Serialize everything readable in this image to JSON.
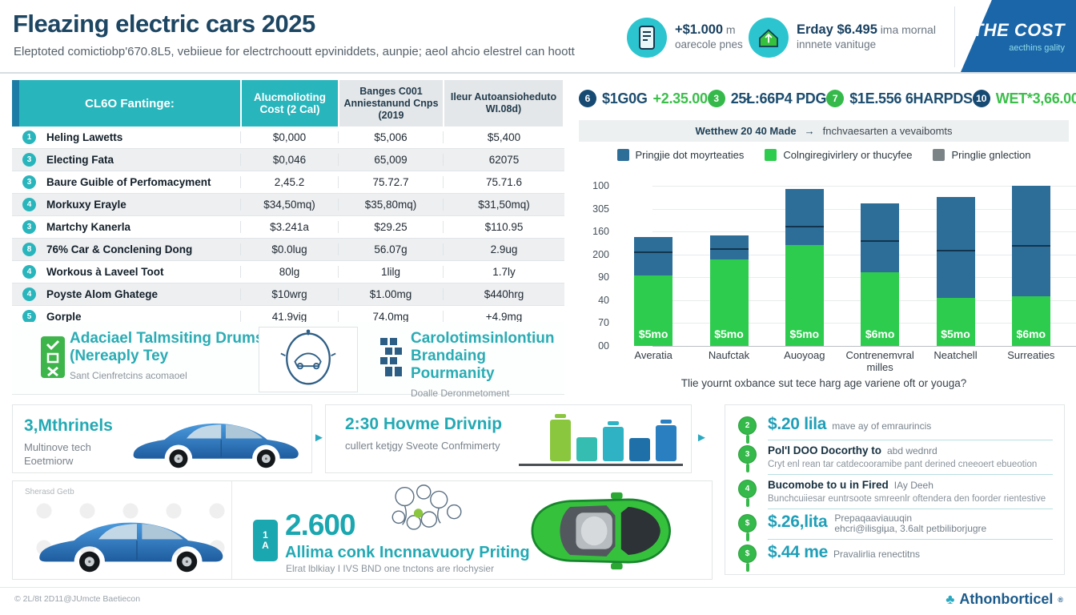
{
  "colors": {
    "teal": "#29b5bc",
    "navy": "#1c4d70",
    "ribbon_blue": "#1b66a8",
    "green": "#35b94a",
    "bar_blue": "#2d6e99",
    "bar_green": "#2ecc4e",
    "money_teal": "#1f9fb8",
    "gray_swatch": "#7b8387"
  },
  "glyphs": {
    "arrow_right": "►",
    "strip_arrow": "→",
    "logo": "♣"
  },
  "header": {
    "title": "Fleazing electric cars 2025",
    "subtitle": "Eleptoted comictiobp'670.8L5, vebiieue for electrchooutt epviniddets, aunpie; aeol ahcio elestrel can hoott",
    "stats": [
      {
        "icon": "phone-icon",
        "value": "+$1.000",
        "value_suffix": "m",
        "label": "oarecole pnes"
      },
      {
        "icon": "ev-home-icon",
        "value": "Erday $6.495",
        "value_suffix": "ima mornal",
        "label": "innnete vanituge"
      }
    ],
    "ribbon": {
      "title": "THE COST",
      "subtitle": "aecthins gality"
    }
  },
  "cost_table": {
    "headers": [
      "CL6O Fantinge:",
      "Alucmolioting Cost (2 Cal)",
      "Banges C001 Anniestanund Cnps (2019",
      "Ileur Autoansioheduto WI.08d)"
    ],
    "rows": [
      {
        "num": "1",
        "label": "Heling Lawetts",
        "values": [
          "$0,000",
          "$5,006",
          "$5,400"
        ]
      },
      {
        "num": "3",
        "label": "Electing Fata",
        "values": [
          "$0,046",
          "65,009",
          "62075"
        ]
      },
      {
        "num": "3",
        "label": "Baure Guible of Perfomacyment",
        "values": [
          "2,45.2",
          "75.72.7",
          "75.71.6"
        ]
      },
      {
        "num": "4",
        "label": "Morkuxy Erayle",
        "values": [
          "$34,50mq)",
          "$35,80mq)",
          "$31,50mq)"
        ]
      },
      {
        "num": "3",
        "label": "Martchy Kanerla",
        "values": [
          "$3.241a",
          "$29.25",
          "$110.95"
        ]
      },
      {
        "num": "8",
        "label": "76% Car & Conclening Dong",
        "values": [
          "$0.0lug",
          "56.07g",
          "2.9ug"
        ]
      },
      {
        "num": "4",
        "label": "Workous à Laveel Toot",
        "values": [
          "80lg",
          "1lilg",
          "1.7ly"
        ]
      },
      {
        "num": "4",
        "label": "Poyste Alom Ghatege",
        "values": [
          "$10wrg",
          "$1.00mg",
          "$440hrg"
        ]
      },
      {
        "num": "5",
        "label": "Gorple",
        "values": [
          "41.9vig",
          "74.0mg",
          "+4.9mg"
        ]
      }
    ]
  },
  "features": [
    {
      "icon": "checklist-icon",
      "title_line1": "Adaciael Talmsiting Drums",
      "title_line2": "(Nereaply Tey",
      "subtitle": "Sant Cienfretcins acomaoel"
    },
    {
      "icon": "building-icon",
      "title_line1": "Carolotimsinlontiun",
      "title_line2": "Brandaing Pourmanity",
      "subtitle": "Doalle Deronmetoment"
    }
  ],
  "right_stats": [
    {
      "num": "6",
      "num_color": "navy",
      "segments": [
        {
          "text": "$1G0G",
          "color": "navy"
        },
        {
          "text": "+2.35.00",
          "color": "green"
        }
      ]
    },
    {
      "num": "3",
      "num_color": "green",
      "segments": [
        {
          "text": "25Ł:66P4 PDG",
          "color": "navy"
        }
      ]
    },
    {
      "num": "7",
      "num_color": "green",
      "segments": [
        {
          "text": "$1E.556 6HARPDS",
          "color": "navy"
        }
      ]
    },
    {
      "num": "10",
      "num_color": "navy",
      "segments": [
        {
          "text": "WET*3,66.00",
          "color": "green"
        }
      ]
    }
  ],
  "subheader_strip": {
    "bold": "Wetthew 20 40 Made",
    "text": "fnchvaesarten a vevaibomts"
  },
  "chart_data": {
    "type": "bar",
    "stacked": true,
    "categories": [
      "Averatia",
      "Naufctak",
      "Auoyoag",
      "Contrenemvral milles",
      "Neatchell",
      "Surreaties"
    ],
    "series": [
      {
        "name": "Colngiregivirlery or thucyfee",
        "color": "#2ecc4e",
        "values": [
          44,
          54,
          63,
          46,
          30,
          31
        ]
      },
      {
        "name": "Pringjie dot moyrteaties",
        "color": "#2d6e99",
        "values": [
          24,
          15,
          35,
          43,
          63,
          69
        ]
      }
    ],
    "marker_line_positions": [
      58,
      60,
      74,
      65,
      59,
      62
    ],
    "bar_labels": [
      "$5mo",
      "$5mo",
      "$5mo",
      "$6mo",
      "$5mo",
      "$6mo"
    ],
    "ytick_labels": [
      "100",
      "305",
      "160",
      "200",
      "90",
      "40",
      "70",
      "00"
    ],
    "ylim": [
      0,
      100
    ],
    "grid": true,
    "legend": [
      {
        "label": "Pringjie dot moyrteaties",
        "color": "#2d6e99"
      },
      {
        "label": "Colngiregivirlery or thucyfee",
        "color": "#2ecc4e"
      },
      {
        "label": "Pringlie gnlection",
        "color": "#7b8387"
      }
    ],
    "caption": "Tlie yournt oxbance sut tece harg age variene oft or youga?"
  },
  "cards": [
    {
      "title": "3,Mthrinels",
      "line1": "Multinove tech",
      "line2": "Eoetmiorw"
    },
    {
      "title": "2:30 Hovme Drivnip",
      "line1": "cullert ketjgy Sveote Confmimerty"
    }
  ],
  "battery_blocks": [
    {
      "h": 52,
      "color": "#8bc63f",
      "cap": true
    },
    {
      "h": 30,
      "color": "#35bdb2",
      "cap": false
    },
    {
      "h": 43,
      "color": "#2fb3c4",
      "cap": true
    },
    {
      "h": 29,
      "color": "#1f6fa8",
      "cap": false
    },
    {
      "h": 45,
      "color": "#2a7fc0",
      "cap": true
    }
  ],
  "tips": [
    {
      "num": "2",
      "style": "money",
      "strong": "$.20 lila",
      "text": "mave ay of emraurincis",
      "sub": ""
    },
    {
      "num": "3",
      "style": "dark",
      "strong": "Pol'l DOO Docorthy to",
      "text": "abd wednrd",
      "sub": "Cryt enl rean tar catdecooramibe pant derined cneeoert ebueotion"
    },
    {
      "num": "4",
      "style": "dark",
      "strong": "Bucomobe to u in Fired",
      "text": "IAy Deeh",
      "sub": "Bunchcuiiesar euntrsoote smreenlr oftendera den foorder rientestive"
    },
    {
      "num": "$",
      "style": "money",
      "strong": "$.26,lita",
      "text": "Prepaqaaviauuqin",
      "sub": "ehcri@ilisgiµa, 3.6alt petbiliborjugre"
    },
    {
      "num": "$",
      "style": "money",
      "strong": "$.44 me",
      "text": "Pravalirlia renectitns",
      "sub": ""
    }
  ],
  "promo": {
    "label": "Sherasd Getb",
    "badge_lines": [
      "1",
      "A"
    ],
    "big_number": "2.600",
    "heading": "Allima conk Incnnavuory Priting",
    "subtitle": "Elrat lblkiay I IVS BND one tnctons are rlochysier"
  },
  "footer": {
    "copyright": "© 2L/8t 2D11@JUmcte Baetiecon",
    "brand": "Athonborticel",
    "brand_mark": "®"
  }
}
